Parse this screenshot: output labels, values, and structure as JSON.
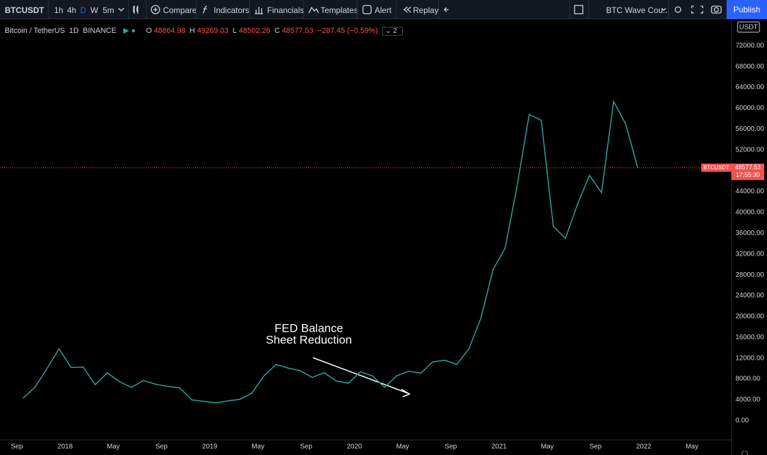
{
  "toolbar": {
    "symbol": "BTCUSDT",
    "intervals": [
      "1h",
      "4h",
      "D",
      "W",
      "5m"
    ],
    "buttons": [
      "Compare",
      "Indicators",
      "Financials",
      "Templates",
      "Alert",
      "Replay"
    ],
    "layout_name": "BTC Wave Cou...",
    "publish": "Publish"
  },
  "legend": {
    "symbol_description": "Bitcoin / TetherUS",
    "interval": "1D",
    "exchange": "BINANCE",
    "ohlc": [
      {
        "letter": "O",
        "value": 48864.98
      },
      {
        "letter": "H",
        "value": 49269.03
      },
      {
        "letter": "L",
        "value": 48502.26
      },
      {
        "letter": "C",
        "value": 48577.53
      }
    ],
    "change": "−287.45 (−0.59%)",
    "indicators_count": 2
  },
  "chart_data": {
    "type": "line",
    "currency": "USDT",
    "grid": false,
    "annotation": [
      "FED Balance",
      "Sheet Reduction"
    ],
    "price_label": {
      "symbol": "BTCUSDT",
      "value": 48577.53,
      "countdown": "17:55:30"
    },
    "xlim": [
      "2017-08",
      "2022-06"
    ],
    "xticks": [
      {
        "value": "2017-09",
        "label": "Sep"
      },
      {
        "value": "2018-01",
        "label": "2018"
      },
      {
        "value": "2018-05",
        "label": "May"
      },
      {
        "value": "2018-09",
        "label": "Sep"
      },
      {
        "value": "2019-01",
        "label": "2019"
      },
      {
        "value": "2019-05",
        "label": "May"
      },
      {
        "value": "2019-09",
        "label": "Sep"
      },
      {
        "value": "2020-01",
        "label": "2020"
      },
      {
        "value": "2020-05",
        "label": "May"
      },
      {
        "value": "2020-09",
        "label": "Sep"
      },
      {
        "value": "2021-01",
        "label": "2021"
      },
      {
        "value": "2021-05",
        "label": "May"
      },
      {
        "value": "2021-09",
        "label": "Sep"
      },
      {
        "value": "2022-01",
        "label": "2022"
      },
      {
        "value": "2022-05",
        "label": "May"
      }
    ],
    "ylim": [
      -3700,
      77100
    ],
    "yticks": [
      {
        "value": 0,
        "label": "0.00"
      },
      {
        "value": 4000,
        "label": "4000.00"
      },
      {
        "value": 8000,
        "label": "8000.00"
      },
      {
        "value": 12000,
        "label": "12000.00"
      },
      {
        "value": 16000,
        "label": "16000.00"
      },
      {
        "value": 20000,
        "label": "20000.00"
      },
      {
        "value": 24000,
        "label": "24000.00"
      },
      {
        "value": 28000,
        "label": "28000.00"
      },
      {
        "value": 32000,
        "label": "32000.00"
      },
      {
        "value": 36000,
        "label": "36000.00"
      },
      {
        "value": 40000,
        "label": "40000.00"
      },
      {
        "value": 44000,
        "label": "44000.00"
      },
      {
        "value": 48000,
        "label": "48000.00"
      },
      {
        "value": 52000,
        "label": "52000.00"
      },
      {
        "value": 56000,
        "label": "56000.00"
      },
      {
        "value": 60000,
        "label": "60000.00"
      },
      {
        "value": 64000,
        "label": "64000.00"
      },
      {
        "value": 68000,
        "label": "68000.00"
      },
      {
        "value": 72000,
        "label": "72000.00"
      }
    ],
    "x": [
      "2017-09",
      "2017-10",
      "2017-11",
      "2017-12",
      "2018-01",
      "2018-02",
      "2018-03",
      "2018-04",
      "2018-05",
      "2018-06",
      "2018-07",
      "2018-08",
      "2018-09",
      "2018-10",
      "2018-11",
      "2018-12",
      "2019-01",
      "2019-02",
      "2019-03",
      "2019-04",
      "2019-05",
      "2019-06",
      "2019-07",
      "2019-08",
      "2019-09",
      "2019-10",
      "2019-11",
      "2019-12",
      "2020-01",
      "2020-02",
      "2020-03",
      "2020-04",
      "2020-05",
      "2020-06",
      "2020-07",
      "2020-08",
      "2020-09",
      "2020-10",
      "2020-11",
      "2020-12",
      "2021-01",
      "2021-02",
      "2021-03",
      "2021-04",
      "2021-05",
      "2021-06",
      "2021-07",
      "2021-08",
      "2021-09",
      "2021-10",
      "2021-11",
      "2021-12"
    ],
    "series": [
      {
        "name": "BTCUSDT",
        "color": "#26a69a",
        "values": [
          4300,
          6400,
          10000,
          13800,
          10200,
          10300,
          6900,
          9200,
          7500,
          6400,
          7700,
          7000,
          6600,
          6300,
          4000,
          3700,
          3400,
          3800,
          4100,
          5300,
          8600,
          10800,
          10100,
          9600,
          8300,
          9200,
          7600,
          7200,
          9400,
          8600,
          6400,
          8600,
          9500,
          9100,
          11300,
          11600,
          10800,
          13800,
          19700,
          29000,
          33100,
          45100,
          58800,
          57700,
          37300,
          35000,
          41500,
          47100,
          43800,
          61300,
          57000,
          48577.53
        ]
      }
    ]
  }
}
